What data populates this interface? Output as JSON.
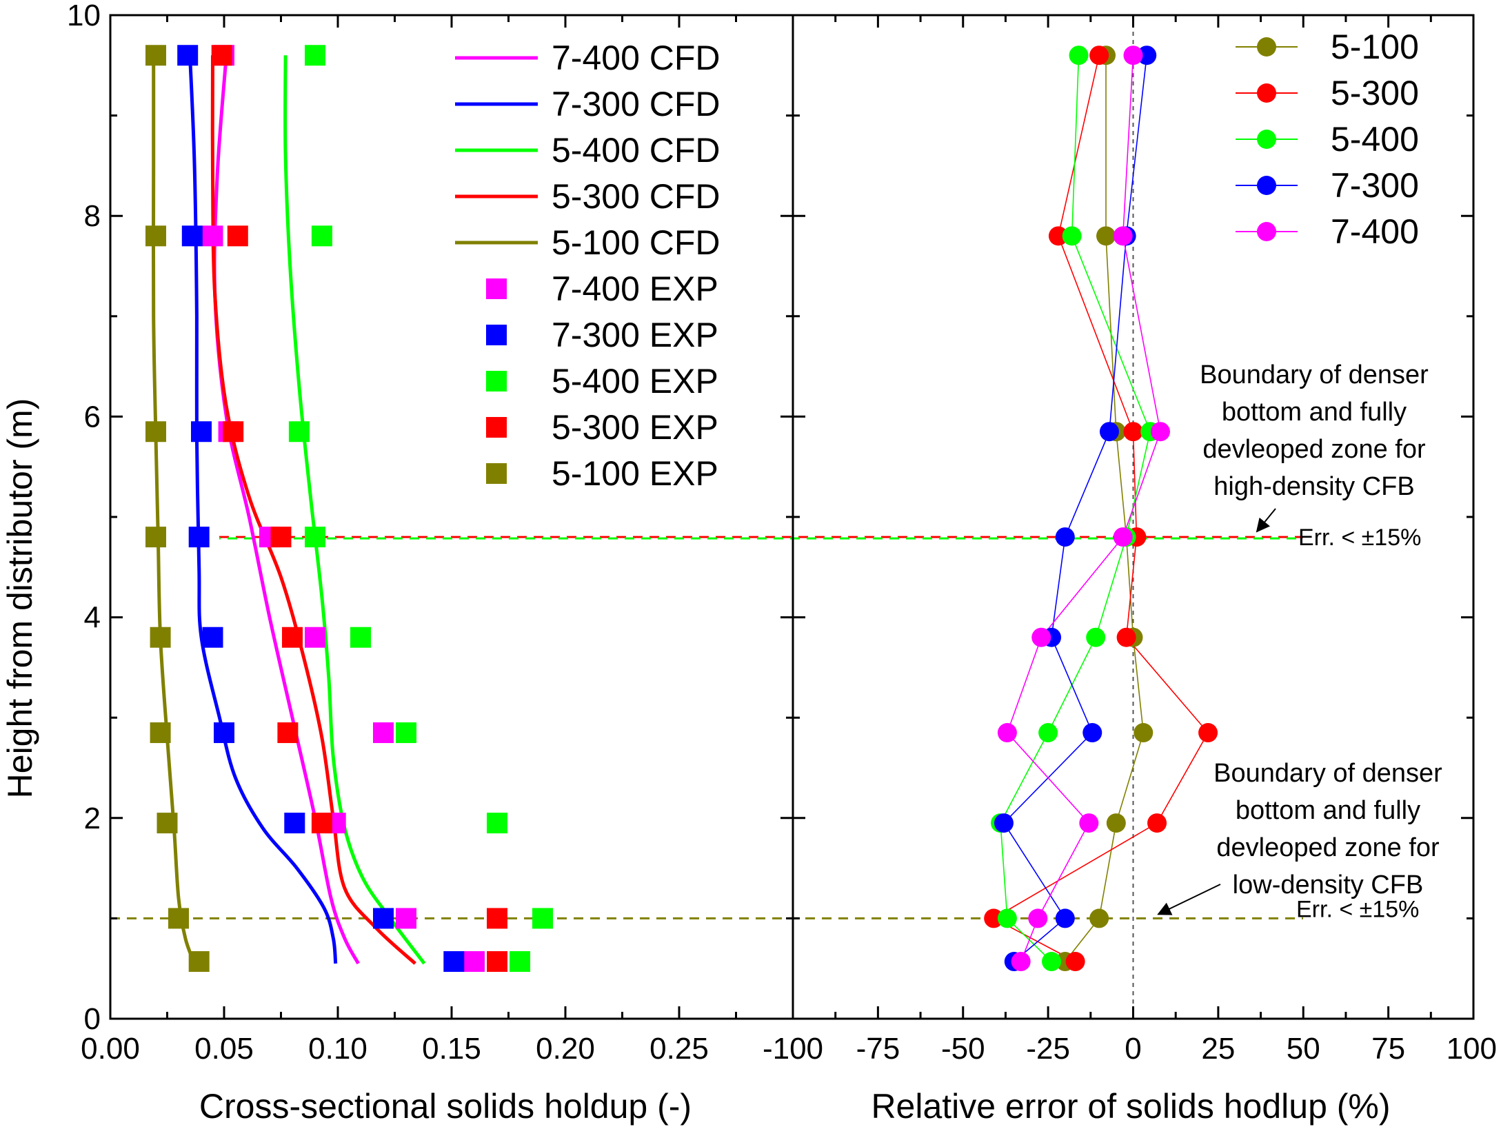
{
  "colors": {
    "7-400": "#ff00ff",
    "7-300": "#0000ff",
    "5-400": "#00ff00",
    "5-300": "#ff0000",
    "5-100": "#808000"
  },
  "chart_data": [
    {
      "type": "line",
      "xlabel": "Cross-sectional solids holdup (-)",
      "ylabel": "Height from distributor (m)",
      "xlim": [
        0,
        0.3
      ],
      "ylim": [
        0,
        10
      ],
      "x_ticks": [
        "0.00",
        "0.05",
        "0.10",
        "0.15",
        "0.20",
        "0.25"
      ],
      "y_ticks": [
        "0",
        "2",
        "4",
        "6",
        "8",
        "10"
      ],
      "legend_position": "top-right",
      "cfd_series": [
        {
          "name": "7-400 CFD",
          "key": "7-400",
          "points": [
            [
              0.051,
              9.6
            ],
            [
              0.047,
              8.4
            ],
            [
              0.046,
              7.2
            ],
            [
              0.051,
              6.0
            ],
            [
              0.061,
              5.0
            ],
            [
              0.07,
              4.0
            ],
            [
              0.08,
              3.0
            ],
            [
              0.09,
              2.0
            ],
            [
              0.097,
              1.2
            ],
            [
              0.103,
              0.8
            ],
            [
              0.109,
              0.55
            ]
          ]
        },
        {
          "name": "7-300 CFD",
          "key": "7-300",
          "points": [
            [
              0.035,
              9.6
            ],
            [
              0.037,
              8.5
            ],
            [
              0.038,
              7.0
            ],
            [
              0.038,
              5.8
            ],
            [
              0.039,
              4.5
            ],
            [
              0.04,
              3.8
            ],
            [
              0.048,
              3.0
            ],
            [
              0.055,
              2.4
            ],
            [
              0.067,
              1.9
            ],
            [
              0.082,
              1.5
            ],
            [
              0.094,
              1.1
            ],
            [
              0.098,
              0.8
            ],
            [
              0.099,
              0.55
            ]
          ]
        },
        {
          "name": "5-400 CFD",
          "key": "5-400",
          "points": [
            [
              0.077,
              9.6
            ],
            [
              0.077,
              8.6
            ],
            [
              0.079,
              7.5
            ],
            [
              0.083,
              6.3
            ],
            [
              0.088,
              5.2
            ],
            [
              0.093,
              4.2
            ],
            [
              0.096,
              3.4
            ],
            [
              0.098,
              2.6
            ],
            [
              0.103,
              1.9
            ],
            [
              0.111,
              1.4
            ],
            [
              0.123,
              1.0
            ],
            [
              0.138,
              0.55
            ]
          ]
        },
        {
          "name": "5-300 CFD",
          "key": "5-300",
          "points": [
            [
              0.045,
              9.6
            ],
            [
              0.045,
              8.4
            ],
            [
              0.046,
              7.2
            ],
            [
              0.051,
              6.1
            ],
            [
              0.061,
              5.2
            ],
            [
              0.075,
              4.4
            ],
            [
              0.085,
              3.6
            ],
            [
              0.093,
              2.8
            ],
            [
              0.098,
              2.0
            ],
            [
              0.103,
              1.3
            ],
            [
              0.117,
              0.9
            ],
            [
              0.134,
              0.55
            ]
          ]
        },
        {
          "name": "5-100 CFD",
          "key": "5-100",
          "points": [
            [
              0.019,
              9.6
            ],
            [
              0.019,
              8.5
            ],
            [
              0.019,
              7.0
            ],
            [
              0.02,
              5.8
            ],
            [
              0.021,
              4.8
            ],
            [
              0.022,
              3.8
            ],
            [
              0.025,
              2.8
            ],
            [
              0.028,
              1.9
            ],
            [
              0.03,
              1.2
            ],
            [
              0.033,
              0.8
            ],
            [
              0.037,
              0.55
            ]
          ]
        }
      ],
      "exp_series": [
        {
          "name": "7-400 EXP",
          "key": "7-400",
          "points": [
            [
              0.05,
              9.6
            ],
            [
              0.045,
              7.8
            ],
            [
              0.052,
              5.85
            ],
            [
              0.07,
              4.8
            ],
            [
              0.09,
              3.8
            ],
            [
              0.12,
              2.85
            ],
            [
              0.099,
              1.95
            ],
            [
              0.13,
              1.0
            ],
            [
              0.16,
              0.57
            ]
          ]
        },
        {
          "name": "7-300 EXP",
          "key": "7-300",
          "points": [
            [
              0.034,
              9.6
            ],
            [
              0.036,
              7.8
            ],
            [
              0.04,
              5.85
            ],
            [
              0.039,
              4.8
            ],
            [
              0.045,
              3.8
            ],
            [
              0.05,
              2.85
            ],
            [
              0.081,
              1.95
            ],
            [
              0.12,
              1.0
            ],
            [
              0.151,
              0.57
            ]
          ]
        },
        {
          "name": "5-400 EXP",
          "key": "5-400",
          "points": [
            [
              0.09,
              9.6
            ],
            [
              0.093,
              7.8
            ],
            [
              0.083,
              5.85
            ],
            [
              0.09,
              4.8
            ],
            [
              0.11,
              3.8
            ],
            [
              0.13,
              2.85
            ],
            [
              0.17,
              1.95
            ],
            [
              0.19,
              1.0
            ],
            [
              0.18,
              0.57
            ]
          ]
        },
        {
          "name": "5-300 EXP",
          "key": "5-300",
          "points": [
            [
              0.049,
              9.6
            ],
            [
              0.056,
              7.8
            ],
            [
              0.054,
              5.85
            ],
            [
              0.075,
              4.8
            ],
            [
              0.08,
              3.8
            ],
            [
              0.078,
              2.85
            ],
            [
              0.093,
              1.95
            ],
            [
              0.17,
              1.0
            ],
            [
              0.17,
              0.57
            ]
          ]
        },
        {
          "name": "5-100 EXP",
          "key": "5-100",
          "points": [
            [
              0.02,
              9.6
            ],
            [
              0.02,
              7.8
            ],
            [
              0.02,
              5.85
            ],
            [
              0.02,
              4.8
            ],
            [
              0.022,
              3.8
            ],
            [
              0.022,
              2.85
            ],
            [
              0.025,
              1.95
            ],
            [
              0.03,
              1.0
            ],
            [
              0.039,
              0.57
            ]
          ]
        }
      ]
    },
    {
      "type": "line",
      "xlabel": "Relative error of solids hodlup (%)",
      "xlim": [
        -100,
        100
      ],
      "ylim": [
        0,
        10
      ],
      "x_ticks": [
        "-100",
        "-75",
        "-50",
        "-25",
        "0",
        "25",
        "50",
        "75",
        "100"
      ],
      "legend_position": "top-right",
      "series": [
        {
          "name": "5-100",
          "key": "5-100",
          "points": [
            [
              -8,
              9.6
            ],
            [
              -8,
              7.8
            ],
            [
              -5,
              5.85
            ],
            [
              -2,
              4.8
            ],
            [
              0,
              3.8
            ],
            [
              3,
              2.85
            ],
            [
              -5,
              1.95
            ],
            [
              -10,
              1.0
            ],
            [
              -20,
              0.57
            ]
          ]
        },
        {
          "name": "5-300",
          "key": "5-300",
          "points": [
            [
              -10,
              9.6
            ],
            [
              -22,
              7.8
            ],
            [
              0,
              5.85
            ],
            [
              1,
              4.8
            ],
            [
              -2,
              3.8
            ],
            [
              22,
              2.85
            ],
            [
              7,
              1.95
            ],
            [
              -41,
              1.0
            ],
            [
              -17,
              0.57
            ]
          ]
        },
        {
          "name": "5-400",
          "key": "5-400",
          "points": [
            [
              -16,
              9.6
            ],
            [
              -18,
              7.8
            ],
            [
              5,
              5.85
            ],
            [
              -2,
              4.8
            ],
            [
              -11,
              3.8
            ],
            [
              -25,
              2.85
            ],
            [
              -39,
              1.95
            ],
            [
              -37,
              1.0
            ],
            [
              -24,
              0.57
            ]
          ]
        },
        {
          "name": "7-300",
          "key": "7-300",
          "points": [
            [
              4,
              9.6
            ],
            [
              -2,
              7.8
            ],
            [
              -7,
              5.85
            ],
            [
              -20,
              4.8
            ],
            [
              -24,
              3.8
            ],
            [
              -12,
              2.85
            ],
            [
              -38,
              1.95
            ],
            [
              -20,
              1.0
            ],
            [
              -35,
              0.57
            ]
          ]
        },
        {
          "name": "7-400",
          "key": "7-400",
          "points": [
            [
              0,
              9.6
            ],
            [
              -3,
              7.8
            ],
            [
              8,
              5.85
            ],
            [
              -3,
              4.8
            ],
            [
              -27,
              3.8
            ],
            [
              -37,
              2.85
            ],
            [
              -13,
              1.95
            ],
            [
              -28,
              1.0
            ],
            [
              -33,
              0.57
            ]
          ]
        }
      ],
      "annotations": {
        "high": {
          "lines": [
            "Boundary of denser",
            "bottom and fully",
            "devleoped zone for",
            "high-density CFB"
          ],
          "err": "Err. < ±15%",
          "height": 4.8
        },
        "low": {
          "lines": [
            "Boundary of denser",
            "bottom and fully",
            "devleoped zone for",
            "low-density CFB"
          ],
          "err": "Err. < ±15%",
          "height": 1.0
        }
      }
    }
  ]
}
